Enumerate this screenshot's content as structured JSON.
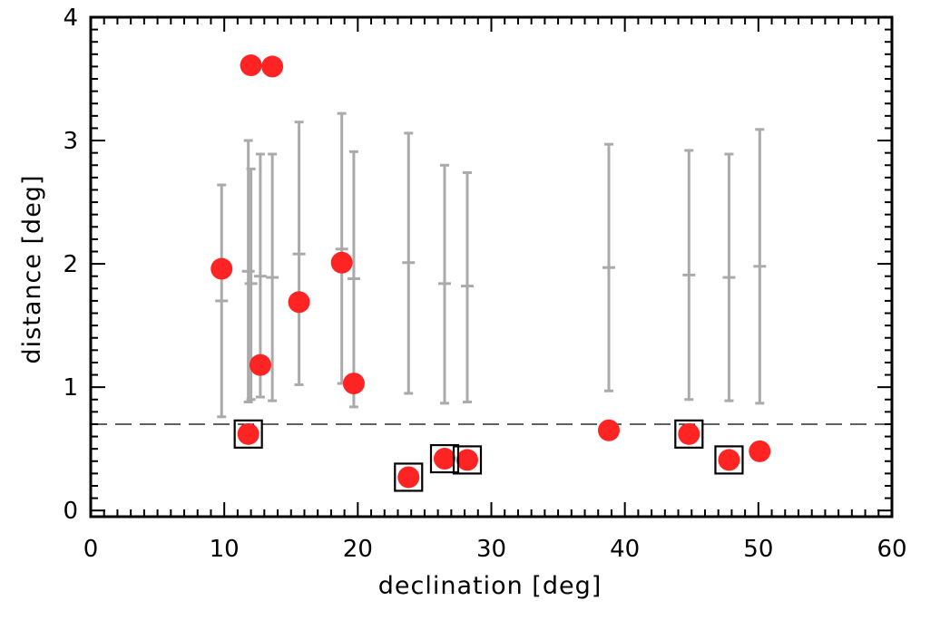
{
  "chart_data": {
    "type": "scatter",
    "title": "",
    "xlabel": "declination [deg]",
    "ylabel": "distance [deg]",
    "xlim": [
      0,
      60
    ],
    "ylim": [
      -0.05,
      4
    ],
    "xticks": [
      0,
      10,
      20,
      30,
      40,
      50,
      60
    ],
    "yticks": [
      0,
      1,
      2,
      3,
      4
    ],
    "x_minor_step": 1,
    "y_minor_step": 0.1,
    "threshold_line": {
      "y": 0.7,
      "style": "dashed"
    },
    "colors": {
      "points": "#ff2424",
      "error_bars": "#aaaaaa",
      "axes": "#000000",
      "boxes": "#000000"
    },
    "points": [
      {
        "x": 9.8,
        "y": 1.96,
        "boxed": false
      },
      {
        "x": 11.8,
        "y": 0.62,
        "boxed": true
      },
      {
        "x": 12.0,
        "y": 3.61,
        "boxed": false
      },
      {
        "x": 12.7,
        "y": 1.18,
        "boxed": false
      },
      {
        "x": 13.6,
        "y": 3.6,
        "boxed": false
      },
      {
        "x": 15.6,
        "y": 1.69,
        "boxed": false
      },
      {
        "x": 18.8,
        "y": 2.01,
        "boxed": false
      },
      {
        "x": 19.7,
        "y": 1.03,
        "boxed": false
      },
      {
        "x": 23.8,
        "y": 0.27,
        "boxed": true
      },
      {
        "x": 26.5,
        "y": 0.42,
        "boxed": true
      },
      {
        "x": 28.2,
        "y": 0.41,
        "boxed": true
      },
      {
        "x": 38.8,
        "y": 0.65,
        "boxed": false
      },
      {
        "x": 44.8,
        "y": 0.62,
        "boxed": true
      },
      {
        "x": 47.8,
        "y": 0.41,
        "boxed": true
      },
      {
        "x": 50.1,
        "y": 0.48,
        "boxed": false
      }
    ],
    "error_bars": [
      {
        "x": 9.8,
        "center": 1.7,
        "low": 0.76,
        "high": 2.64
      },
      {
        "x": 11.8,
        "center": 1.94,
        "low": 0.88,
        "high": 3.0
      },
      {
        "x": 12.0,
        "center": 1.84,
        "low": 0.9,
        "high": 2.77
      },
      {
        "x": 12.7,
        "center": 1.9,
        "low": 0.92,
        "high": 2.89
      },
      {
        "x": 13.6,
        "center": 1.89,
        "low": 0.89,
        "high": 2.89
      },
      {
        "x": 15.6,
        "center": 2.08,
        "low": 1.02,
        "high": 3.15
      },
      {
        "x": 18.8,
        "center": 2.12,
        "low": 1.03,
        "high": 3.22
      },
      {
        "x": 19.7,
        "center": 1.88,
        "low": 0.84,
        "high": 2.91
      },
      {
        "x": 23.8,
        "center": 2.01,
        "low": 0.95,
        "high": 3.06
      },
      {
        "x": 26.5,
        "center": 1.84,
        "low": 0.87,
        "high": 2.8
      },
      {
        "x": 28.2,
        "center": 1.82,
        "low": 0.88,
        "high": 2.74
      },
      {
        "x": 38.8,
        "center": 1.97,
        "low": 0.97,
        "high": 2.97
      },
      {
        "x": 44.8,
        "center": 1.91,
        "low": 0.9,
        "high": 2.92
      },
      {
        "x": 47.8,
        "center": 1.89,
        "low": 0.89,
        "high": 2.89
      },
      {
        "x": 50.1,
        "center": 1.98,
        "low": 0.87,
        "high": 3.09
      }
    ]
  }
}
